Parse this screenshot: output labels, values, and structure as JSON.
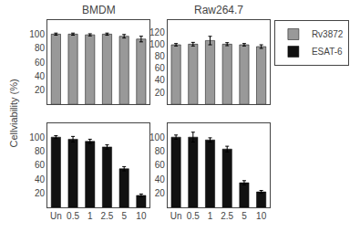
{
  "ylabel": "Cellviability (%)",
  "chart_data": [
    {
      "type": "bar",
      "title": "BMDM",
      "categories": [
        "Un",
        "0.5",
        "1",
        "2.5",
        "5",
        "10"
      ],
      "series": [
        {
          "name": "Rv3872",
          "color": "#999999",
          "values": [
            100,
            100,
            99,
            100,
            97,
            93
          ],
          "errors": [
            1.5,
            1.5,
            1.5,
            1.5,
            2.5,
            4
          ]
        }
      ],
      "ylim": [
        0,
        120
      ],
      "yticks": [
        20,
        40,
        60,
        80,
        100
      ],
      "grid": false,
      "tick_labels": "y"
    },
    {
      "type": "bar",
      "title": "Raw264.7",
      "categories": [
        "Un",
        "0.5",
        "1",
        "2.5",
        "5",
        "10"
      ],
      "series": [
        {
          "name": "Rv3872",
          "color": "#999999",
          "values": [
            99,
            100,
            106,
            100,
            99,
            96
          ],
          "errors": [
            2,
            3,
            7,
            2.5,
            2,
            3
          ]
        }
      ],
      "ylim": [
        0,
        140
      ],
      "yticks": [
        20,
        40,
        60,
        80,
        100,
        120
      ],
      "grid": false,
      "tick_labels": "y",
      "legend": "right"
    },
    {
      "type": "bar",
      "categories": [
        "Un",
        "0.5",
        "1",
        "2.5",
        "5",
        "10"
      ],
      "series": [
        {
          "name": "ESAT-6",
          "color": "#111111",
          "values": [
            100,
            97,
            94,
            86,
            55,
            17
          ],
          "errors": [
            2,
            4,
            3,
            3,
            3,
            2
          ]
        }
      ],
      "ylim": [
        0,
        120
      ],
      "yticks": [
        20,
        40,
        60,
        80,
        100
      ],
      "grid": false
    },
    {
      "type": "bar",
      "categories": [
        "Un",
        "0.5",
        "1",
        "2.5",
        "5",
        "10"
      ],
      "series": [
        {
          "name": "ESAT-6",
          "color": "#111111",
          "values": [
            100,
            100,
            96,
            83,
            35,
            22
          ],
          "errors": [
            3,
            7,
            3,
            4,
            3,
            2
          ]
        }
      ],
      "ylim": [
        0,
        120
      ],
      "yticks": [
        20,
        40,
        60,
        80,
        100
      ],
      "grid": false
    }
  ]
}
